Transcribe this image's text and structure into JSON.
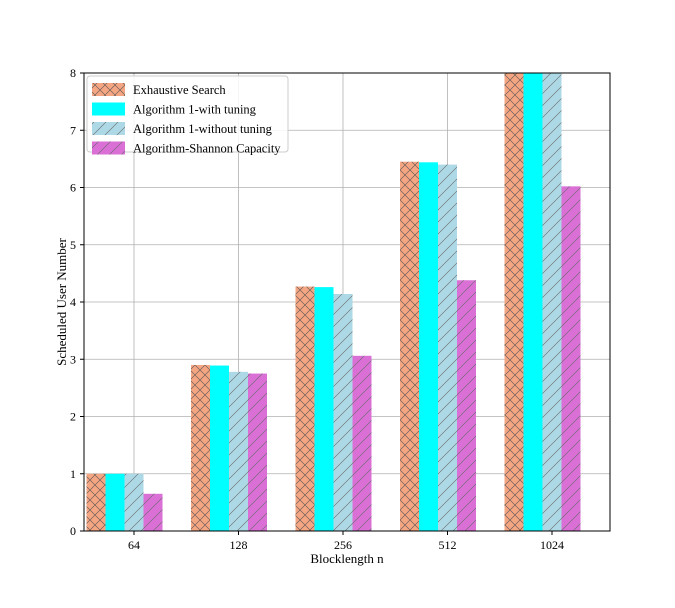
{
  "chart_data": {
    "type": "bar",
    "title": "",
    "xlabel": "Blocklength n",
    "ylabel": "Scheduled User Number",
    "categories": [
      "64",
      "128",
      "256",
      "512",
      "1024"
    ],
    "ylim": [
      0,
      8
    ],
    "yticks": [
      0,
      1,
      2,
      3,
      4,
      5,
      6,
      7,
      8
    ],
    "grid": true,
    "legend_position": "top-left",
    "series": [
      {
        "name": "Exhaustive Search",
        "values": [
          1.0,
          2.9,
          4.27,
          6.45,
          8.0
        ],
        "color": "#f4a582",
        "hatch": "crosshatch"
      },
      {
        "name": "Algorithm 1-with tuning",
        "values": [
          1.0,
          2.89,
          4.26,
          6.44,
          8.0
        ],
        "color": "#00ffff",
        "hatch": "none"
      },
      {
        "name": "Algorithm 1-without tuning",
        "values": [
          1.0,
          2.78,
          4.14,
          6.4,
          8.0
        ],
        "color": "#add8e6",
        "hatch": "diagonal"
      },
      {
        "name": "Algorithm-Shannon Capacity",
        "values": [
          0.65,
          2.75,
          3.06,
          4.38,
          6.02
        ],
        "color": "#da70d6",
        "hatch": "diagonal"
      }
    ]
  }
}
